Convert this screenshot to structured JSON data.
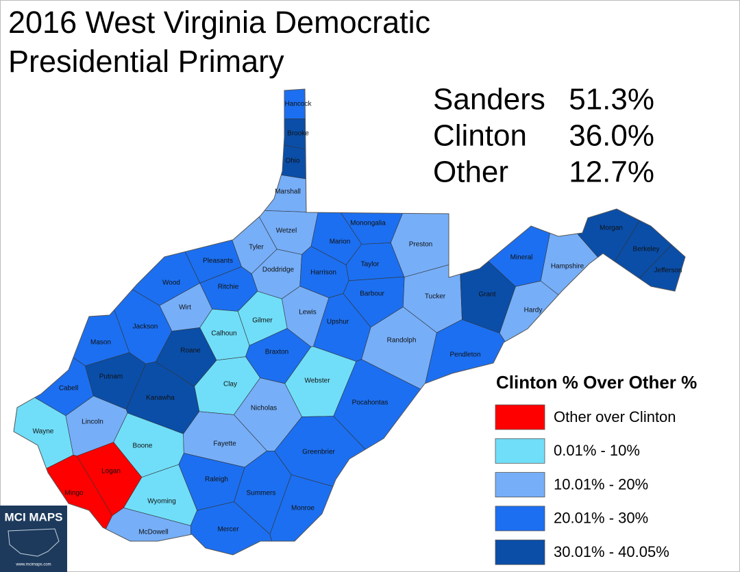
{
  "title": [
    "2016 West Virginia Democratic",
    "Presidential Primary"
  ],
  "results": [
    {
      "name": "Sanders",
      "share": "51.3%"
    },
    {
      "name": "Clinton",
      "share": "36.0%"
    },
    {
      "name": "Other",
      "share": "12.7%"
    }
  ],
  "legend": {
    "title": "Clinton % Over Other %",
    "items": [
      {
        "label": "Other over Clinton",
        "color": "#ff0000"
      },
      {
        "label": "0.01% - 10%",
        "color": "#70def8"
      },
      {
        "label": "10.01% - 20%",
        "color": "#76aef8"
      },
      {
        "label": "20.01% - 30%",
        "color": "#1c6ff0"
      },
      {
        "label": "30.01% - 40.05%",
        "color": "#0a4ea8"
      }
    ]
  },
  "counties": [
    {
      "name": "Hancock",
      "color": "#1c6ff0"
    },
    {
      "name": "Brooke",
      "color": "#0a4ea8"
    },
    {
      "name": "Ohio",
      "color": "#0a4ea8"
    },
    {
      "name": "Marshall",
      "color": "#76aef8"
    },
    {
      "name": "Wetzel",
      "color": "#76aef8"
    },
    {
      "name": "Monongalia",
      "color": "#1c6ff0"
    },
    {
      "name": "Preston",
      "color": "#76aef8"
    },
    {
      "name": "Marion",
      "color": "#1c6ff0"
    },
    {
      "name": "Tyler",
      "color": "#76aef8"
    },
    {
      "name": "Pleasants",
      "color": "#1c6ff0"
    },
    {
      "name": "Doddridge",
      "color": "#76aef8"
    },
    {
      "name": "Taylor",
      "color": "#1c6ff0"
    },
    {
      "name": "Harrison",
      "color": "#1c6ff0"
    },
    {
      "name": "Wood",
      "color": "#1c6ff0"
    },
    {
      "name": "Ritchie",
      "color": "#1c6ff0"
    },
    {
      "name": "Barbour",
      "color": "#1c6ff0"
    },
    {
      "name": "Tucker",
      "color": "#76aef8"
    },
    {
      "name": "Grant",
      "color": "#0a4ea8"
    },
    {
      "name": "Mineral",
      "color": "#1c6ff0"
    },
    {
      "name": "Hampshire",
      "color": "#76aef8"
    },
    {
      "name": "Morgan",
      "color": "#0a4ea8"
    },
    {
      "name": "Berkeley",
      "color": "#0a4ea8"
    },
    {
      "name": "Jefferson",
      "color": "#0a4ea8"
    },
    {
      "name": "Hardy",
      "color": "#76aef8"
    },
    {
      "name": "Wirt",
      "color": "#76aef8"
    },
    {
      "name": "Lewis",
      "color": "#76aef8"
    },
    {
      "name": "Gilmer",
      "color": "#70def8"
    },
    {
      "name": "Calhoun",
      "color": "#70def8"
    },
    {
      "name": "Upshur",
      "color": "#1c6ff0"
    },
    {
      "name": "Jackson",
      "color": "#1c6ff0"
    },
    {
      "name": "Mason",
      "color": "#1c6ff0"
    },
    {
      "name": "Roane",
      "color": "#0a4ea8"
    },
    {
      "name": "Randolph",
      "color": "#76aef8"
    },
    {
      "name": "Braxton",
      "color": "#1c6ff0"
    },
    {
      "name": "Pendleton",
      "color": "#1c6ff0"
    },
    {
      "name": "Putnam",
      "color": "#0a4ea8"
    },
    {
      "name": "Cabell",
      "color": "#1c6ff0"
    },
    {
      "name": "Clay",
      "color": "#70def8"
    },
    {
      "name": "Webster",
      "color": "#70def8"
    },
    {
      "name": "Kanawha",
      "color": "#0a4ea8"
    },
    {
      "name": "Pocahontas",
      "color": "#1c6ff0"
    },
    {
      "name": "Nicholas",
      "color": "#76aef8"
    },
    {
      "name": "Wayne",
      "color": "#70def8"
    },
    {
      "name": "Lincoln",
      "color": "#76aef8"
    },
    {
      "name": "Boone",
      "color": "#70def8"
    },
    {
      "name": "Fayette",
      "color": "#76aef8"
    },
    {
      "name": "Greenbrier",
      "color": "#1c6ff0"
    },
    {
      "name": "Logan",
      "color": "#ff0000"
    },
    {
      "name": "Mingo",
      "color": "#ff0000"
    },
    {
      "name": "Raleigh",
      "color": "#1c6ff0"
    },
    {
      "name": "Summers",
      "color": "#1c6ff0"
    },
    {
      "name": "Wyoming",
      "color": "#70def8"
    },
    {
      "name": "Monroe",
      "color": "#1c6ff0"
    },
    {
      "name": "McDowell",
      "color": "#76aef8"
    },
    {
      "name": "Mercer",
      "color": "#1c6ff0"
    }
  ],
  "logo": {
    "name": "MCI MAPS",
    "url": "www.mcimaps.com"
  }
}
